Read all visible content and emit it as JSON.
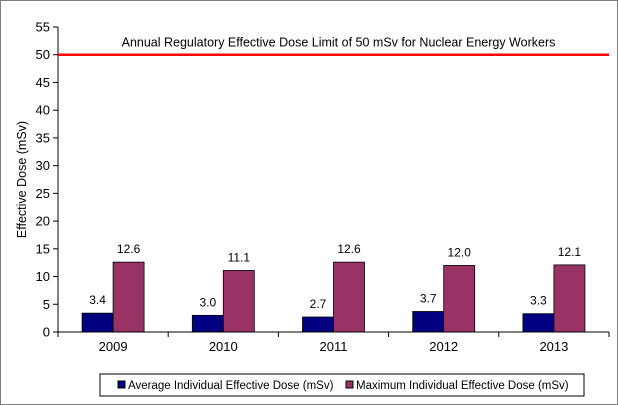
{
  "chart_data": {
    "type": "bar",
    "title": "",
    "xlabel": "",
    "ylabel": "Effective Dose (mSv)",
    "ylim": [
      0,
      55
    ],
    "yticks": [
      0,
      5,
      10,
      15,
      20,
      25,
      30,
      35,
      40,
      45,
      50,
      55
    ],
    "categories": [
      "2009",
      "2010",
      "2011",
      "2012",
      "2013"
    ],
    "series": [
      {
        "name": "Average Individual Effective Dose (mSv)",
        "values": [
          3.4,
          3.0,
          2.7,
          3.7,
          3.3
        ],
        "labels": [
          "3.4",
          "3.0",
          "2.7",
          "3.7",
          "3.3"
        ],
        "color": "#000080"
      },
      {
        "name": "Maximum Individual Effective Dose (mSv)",
        "values": [
          12.6,
          11.1,
          12.6,
          12.0,
          12.1
        ],
        "labels": [
          "12.6",
          "11.1",
          "12.6",
          "12.0",
          "12.1"
        ],
        "color": "#993366"
      }
    ],
    "reference_line": {
      "value": 50,
      "label": "Annual Regulatory Effective Dose Limit of 50 mSv for Nuclear Energy Workers",
      "color": "#ff0000"
    },
    "grid": false,
    "legend_position": "bottom"
  }
}
